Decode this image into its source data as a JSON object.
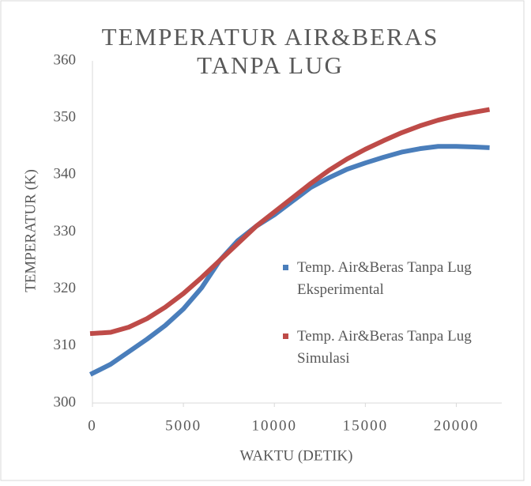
{
  "chart_data": {
    "type": "line",
    "title": [
      "TEMPERATUR AIR&BERAS",
      "TANPA LUG"
    ],
    "x_label": "WAKTU (DETIK)",
    "y_label": "TEMPERATUR (K)",
    "x": [
      0,
      1000,
      2000,
      3000,
      4000,
      5000,
      6000,
      7000,
      8000,
      9000,
      10000,
      11000,
      12000,
      13000,
      14000,
      15000,
      16000,
      17000,
      18000,
      19000,
      20000,
      21000,
      21700
    ],
    "series": [
      {
        "name": "Temp. Air&Beras Tanpa Lug Eksperimental",
        "color": "#4a7ebb",
        "values": [
          305.2,
          306.8,
          309,
          311.2,
          313.6,
          316.5,
          320.2,
          325,
          328.5,
          331,
          333,
          335.4,
          337.8,
          339.5,
          341,
          342.1,
          343.1,
          344,
          344.6,
          345,
          345,
          344.9,
          344.8
        ]
      },
      {
        "name": "Temp. Air&Beras Tanpa Lug Simulasi",
        "color": "#be4b48",
        "values": [
          312.2,
          312.4,
          313.3,
          314.8,
          316.8,
          319.2,
          322,
          325,
          328,
          331,
          333.5,
          336,
          338.5,
          340.8,
          342.8,
          344.5,
          346,
          347.4,
          348.6,
          349.6,
          350.4,
          351,
          351.4
        ]
      }
    ],
    "xlim": [
      0,
      22500
    ],
    "xticks": [
      0,
      5000,
      10000,
      15000,
      20000
    ],
    "ylim": [
      300,
      360
    ],
    "yticks": [
      300,
      310,
      320,
      330,
      340,
      350,
      360
    ],
    "grid": false,
    "legend": "right"
  }
}
